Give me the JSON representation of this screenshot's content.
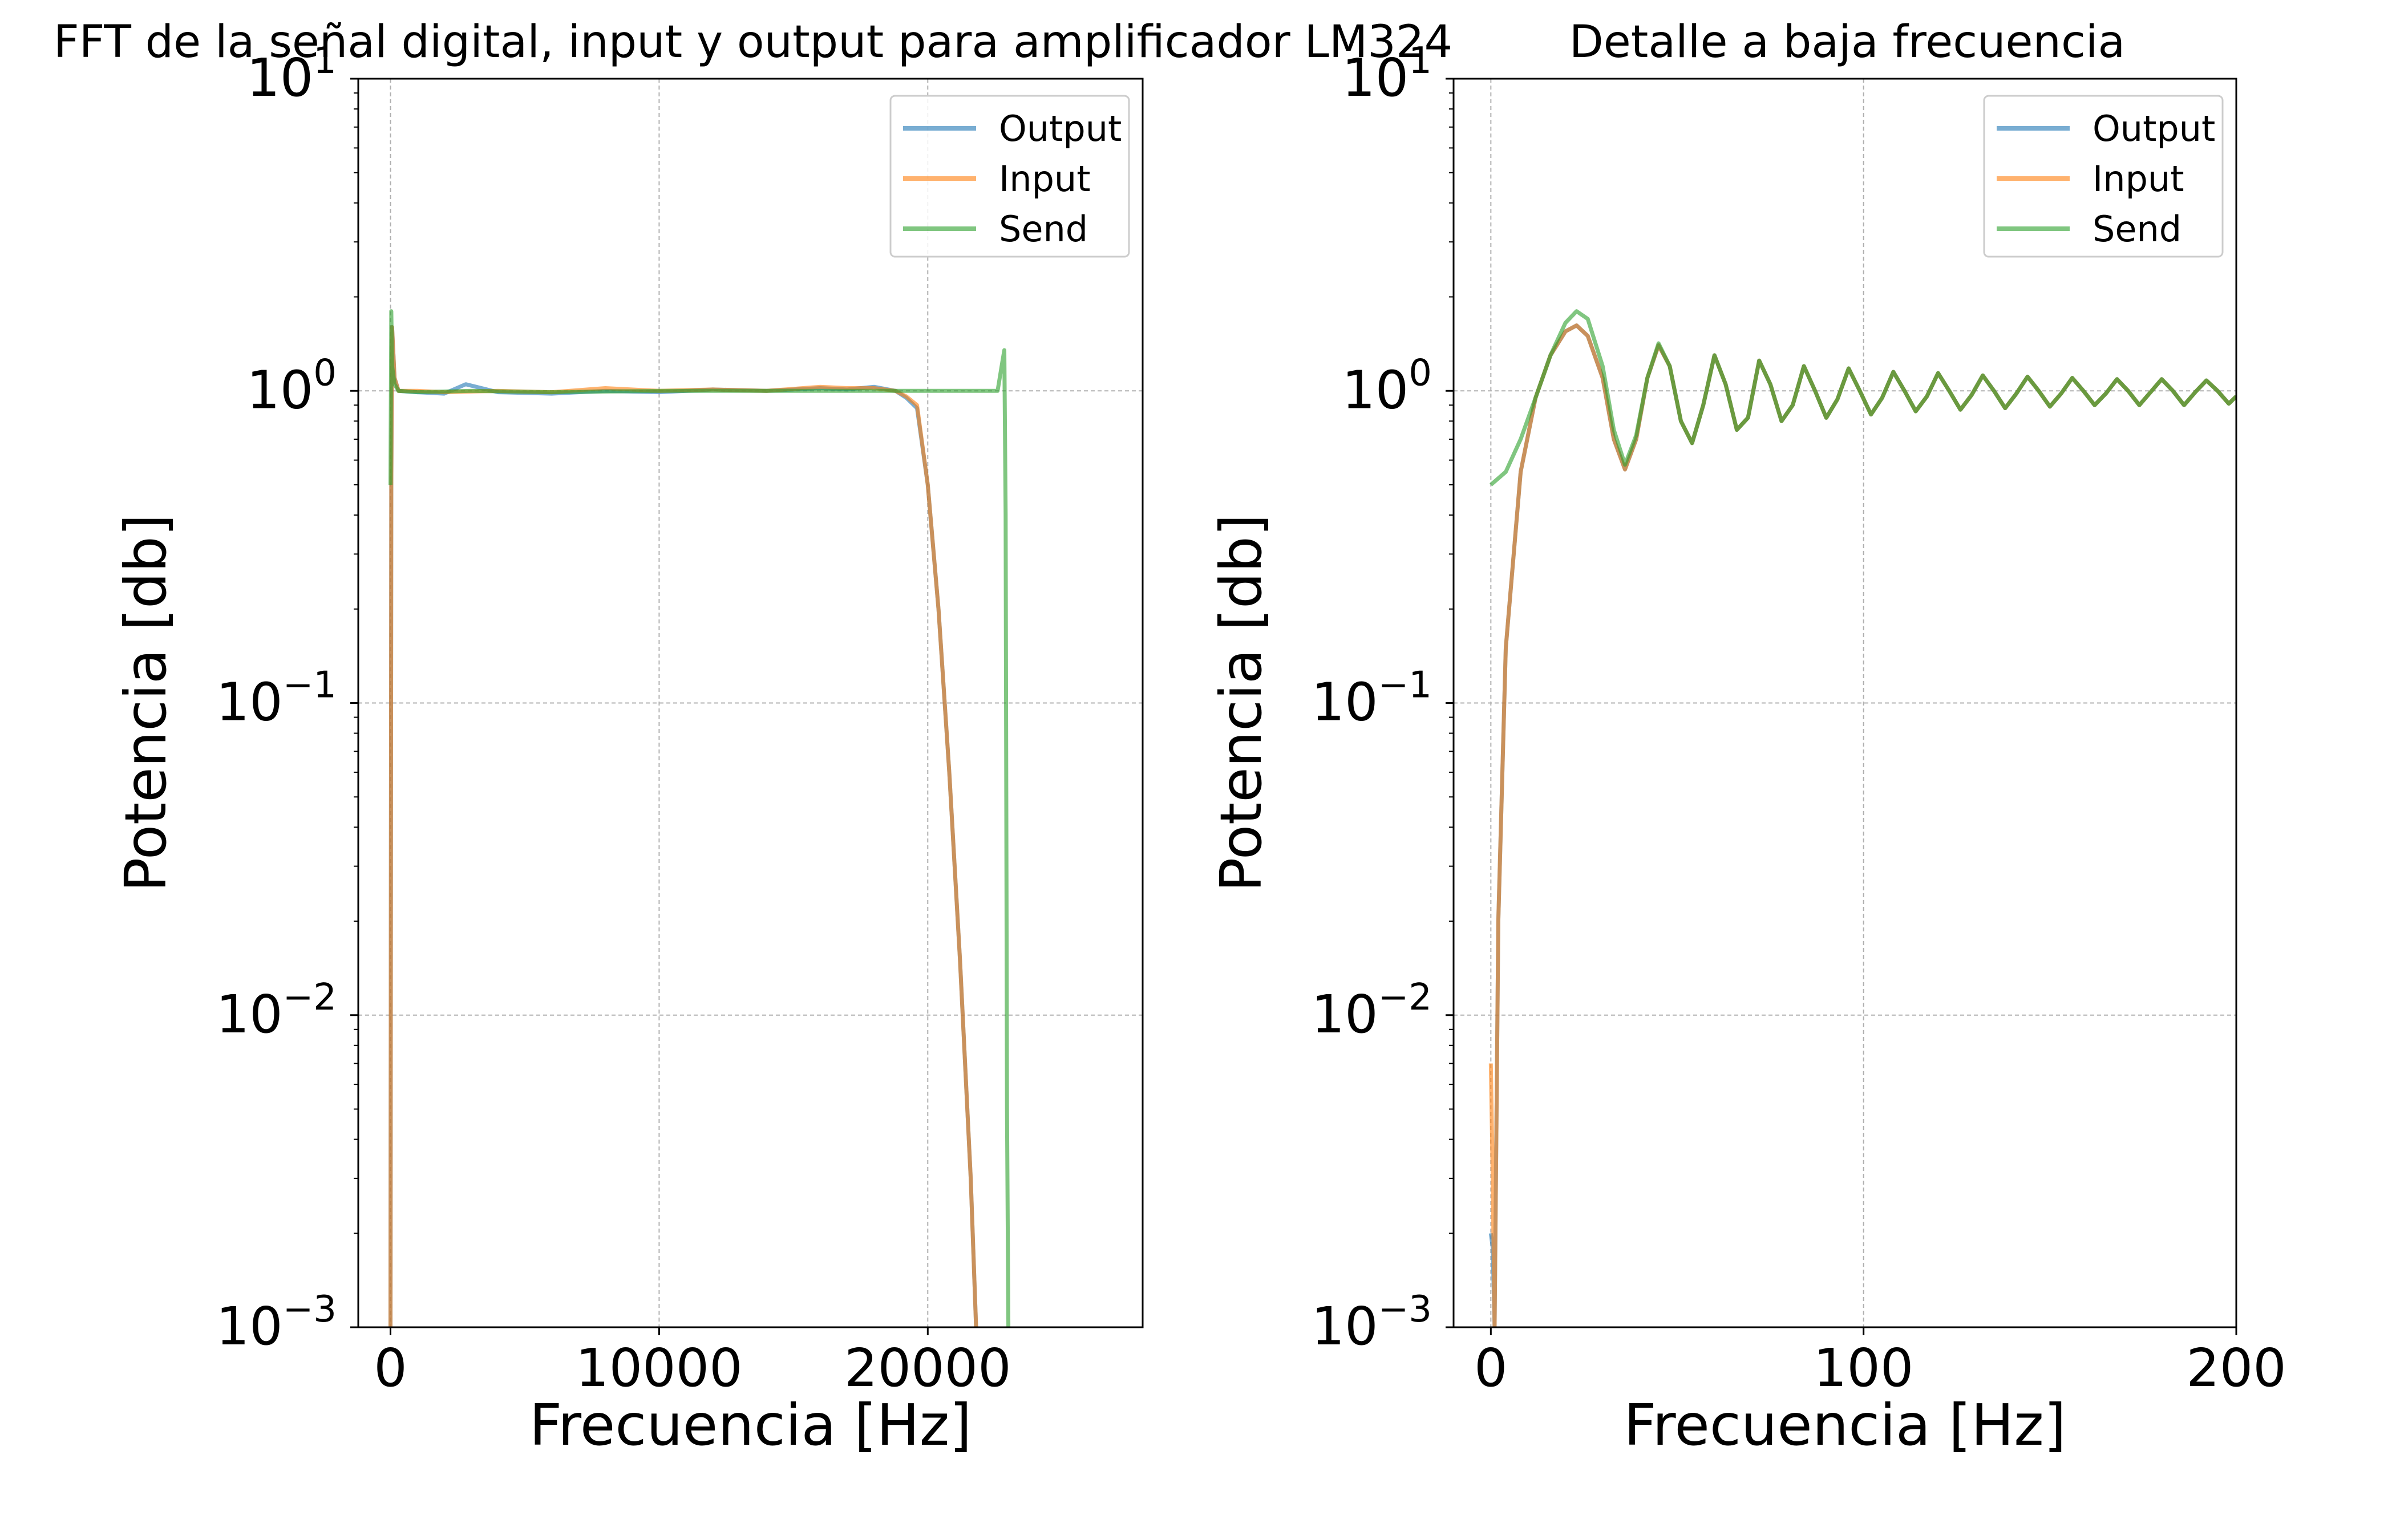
{
  "figure": {
    "left_title": "FFT de la señal digital, input y output para amplificador LM324",
    "right_title": "Detalle a baja frecuencia"
  },
  "colors": {
    "Output": "#1f77b4",
    "Input": "#ff7f0e",
    "Send": "#2ca02c"
  },
  "chart_data": [
    {
      "type": "line",
      "title": "FFT de la señal digital, input y output para amplificador LM324",
      "xlabel": "Frecuencia [Hz]",
      "ylabel": "Potencia [db]",
      "xlim": [
        -1200,
        28000
      ],
      "ylim": [
        0.001,
        10
      ],
      "yscale": "log",
      "xticks": [
        0,
        10000,
        20000
      ],
      "xtick_labels": [
        "0",
        "10000",
        "20000"
      ],
      "yticks": [
        0.001,
        0.01,
        0.1,
        1,
        10
      ],
      "ytick_labels": [
        [
          "10",
          "−3"
        ],
        [
          "10",
          "−2"
        ],
        [
          "10",
          "−1"
        ],
        [
          "10",
          "0"
        ],
        [
          "10",
          "1"
        ]
      ],
      "grid": true,
      "legend": {
        "position": "upper right",
        "entries": [
          "Output",
          "Input",
          "Send"
        ]
      },
      "series": [
        {
          "name": "Output",
          "x": [
            0,
            30,
            60,
            150,
            300,
            1000,
            2000,
            2800,
            4000,
            6000,
            8000,
            10000,
            12000,
            14000,
            16000,
            17000,
            18000,
            18800,
            19200,
            19600,
            20000,
            20400,
            20800,
            21200,
            21600,
            21800
          ],
          "y": [
            0.001,
            0.5,
            1.6,
            1.1,
            1.0,
            0.99,
            0.98,
            1.05,
            0.99,
            0.98,
            1.0,
            0.99,
            1.01,
            1.0,
            1.02,
            1.01,
            1.03,
            1.0,
            0.95,
            0.88,
            0.5,
            0.2,
            0.06,
            0.015,
            0.003,
            0.001
          ]
        },
        {
          "name": "Input",
          "x": [
            0,
            30,
            60,
            150,
            300,
            1000,
            2000,
            4000,
            6000,
            8000,
            10000,
            12000,
            14000,
            16000,
            17000,
            18000,
            18800,
            19200,
            19600,
            20000,
            20400,
            20800,
            21200,
            21600,
            21800
          ],
          "y": [
            0.001,
            0.5,
            1.6,
            1.1,
            1.0,
            1.0,
            0.99,
            1.0,
            0.99,
            1.02,
            1.0,
            1.01,
            1.0,
            1.03,
            1.02,
            1.02,
            1.0,
            0.96,
            0.9,
            0.5,
            0.2,
            0.06,
            0.015,
            0.003,
            0.001
          ]
        },
        {
          "name": "Send",
          "x": [
            0,
            30,
            60,
            150,
            300,
            1000,
            3000,
            6000,
            10000,
            14000,
            18000,
            19000,
            20000,
            21000,
            22000,
            22600,
            22750,
            22850,
            22900,
            22950,
            23000
          ],
          "y": [
            0.5,
            1.8,
            1.2,
            1.05,
            1.0,
            0.99,
            1.0,
            0.99,
            1.0,
            1.0,
            1.0,
            1.0,
            1.0,
            1.0,
            1.0,
            1.0,
            1.2,
            1.35,
            0.4,
            0.005,
            0.001
          ]
        }
      ]
    },
    {
      "type": "line",
      "title": "Detalle a baja frecuencia",
      "xlabel": "Frecuencia [Hz]",
      "ylabel": "Potencia [db]",
      "xlim": [
        -10,
        200
      ],
      "ylim": [
        0.001,
        10
      ],
      "yscale": "log",
      "xticks": [
        0,
        100,
        200
      ],
      "xtick_labels": [
        "0",
        "100",
        "200"
      ],
      "yticks": [
        0.001,
        0.01,
        0.1,
        1,
        10
      ],
      "ytick_labels": [
        [
          "10",
          "−3"
        ],
        [
          "10",
          "−2"
        ],
        [
          "10",
          "−1"
        ],
        [
          "10",
          "0"
        ],
        [
          "10",
          "1"
        ]
      ],
      "grid": true,
      "legend": {
        "position": "upper right",
        "entries": [
          "Output",
          "Input",
          "Send"
        ]
      },
      "series": [
        {
          "name": "Output",
          "x": [
            0,
            0.5,
            1,
            2,
            4,
            8,
            12,
            16,
            20,
            23,
            26,
            30,
            33,
            36,
            39,
            42,
            45,
            48,
            51,
            54,
            57,
            60,
            63,
            66,
            69,
            72,
            75,
            78,
            81,
            84,
            87,
            90,
            93,
            96,
            99,
            102,
            105,
            108,
            111,
            114,
            117,
            120,
            123,
            126,
            129,
            132,
            135,
            138,
            141,
            144,
            147,
            150,
            153,
            156,
            159,
            162,
            165,
            168,
            171,
            174,
            177,
            180,
            183,
            186,
            189,
            192,
            195,
            198,
            200
          ],
          "y": [
            0.002,
            0.0018,
            0.001,
            0.02,
            0.15,
            0.55,
            0.95,
            1.3,
            1.55,
            1.62,
            1.5,
            1.1,
            0.7,
            0.56,
            0.7,
            1.1,
            1.4,
            1.2,
            0.8,
            0.68,
            0.9,
            1.3,
            1.05,
            0.75,
            0.82,
            1.25,
            1.05,
            0.8,
            0.9,
            1.2,
            1.0,
            0.82,
            0.94,
            1.18,
            1.0,
            0.84,
            0.95,
            1.15,
            1.0,
            0.86,
            0.96,
            1.14,
            1.0,
            0.87,
            0.97,
            1.12,
            1.0,
            0.88,
            0.98,
            1.11,
            1.0,
            0.89,
            0.98,
            1.1,
            1.0,
            0.9,
            0.98,
            1.09,
            1.0,
            0.9,
            0.99,
            1.09,
            1.0,
            0.9,
            0.99,
            1.08,
            1.0,
            0.91,
            0.96
          ]
        },
        {
          "name": "Input",
          "x": [
            0,
            0.5,
            1,
            2,
            4,
            8,
            12,
            16,
            20,
            23,
            26,
            30,
            33,
            36,
            39,
            42,
            45,
            48,
            51,
            54,
            57,
            60,
            63,
            66,
            69,
            72,
            75,
            78,
            81,
            84,
            87,
            90,
            93,
            96,
            99,
            102,
            105,
            108,
            111,
            114,
            117,
            120,
            123,
            126,
            129,
            132,
            135,
            138,
            141,
            144,
            147,
            150,
            153,
            156,
            159,
            162,
            165,
            168,
            171,
            174,
            177,
            180,
            183,
            186,
            189,
            192,
            195,
            198,
            200
          ],
          "y": [
            0.007,
            0.003,
            0.001,
            0.02,
            0.15,
            0.55,
            0.95,
            1.3,
            1.55,
            1.62,
            1.5,
            1.1,
            0.7,
            0.56,
            0.7,
            1.1,
            1.4,
            1.2,
            0.8,
            0.68,
            0.9,
            1.3,
            1.05,
            0.75,
            0.82,
            1.25,
            1.05,
            0.8,
            0.9,
            1.2,
            1.0,
            0.82,
            0.94,
            1.18,
            1.0,
            0.84,
            0.95,
            1.15,
            1.0,
            0.86,
            0.96,
            1.14,
            1.0,
            0.87,
            0.97,
            1.12,
            1.0,
            0.88,
            0.98,
            1.11,
            1.0,
            0.89,
            0.98,
            1.1,
            1.0,
            0.9,
            0.98,
            1.09,
            1.0,
            0.9,
            0.99,
            1.09,
            1.0,
            0.9,
            0.99,
            1.08,
            1.0,
            0.91,
            0.96
          ]
        },
        {
          "name": "Send",
          "x": [
            0,
            4,
            8,
            12,
            16,
            20,
            23,
            26,
            30,
            33,
            36,
            39,
            42,
            45,
            48,
            51,
            54,
            57,
            60,
            63,
            66,
            69,
            72,
            75,
            78,
            81,
            84,
            87,
            90,
            93,
            96,
            99,
            102,
            105,
            108,
            111,
            114,
            117,
            120,
            123,
            126,
            129,
            132,
            135,
            138,
            141,
            144,
            147,
            150,
            153,
            156,
            159,
            162,
            165,
            168,
            171,
            174,
            177,
            180,
            183,
            186,
            189,
            192,
            195,
            198,
            200
          ],
          "y": [
            0.5,
            0.55,
            0.7,
            0.95,
            1.3,
            1.65,
            1.8,
            1.7,
            1.2,
            0.75,
            0.58,
            0.72,
            1.1,
            1.42,
            1.2,
            0.8,
            0.68,
            0.9,
            1.3,
            1.05,
            0.75,
            0.82,
            1.25,
            1.05,
            0.8,
            0.9,
            1.2,
            1.0,
            0.82,
            0.94,
            1.18,
            1.0,
            0.84,
            0.95,
            1.15,
            1.0,
            0.86,
            0.96,
            1.14,
            1.0,
            0.87,
            0.97,
            1.12,
            1.0,
            0.88,
            0.98,
            1.11,
            1.0,
            0.89,
            0.98,
            1.1,
            1.0,
            0.9,
            0.98,
            1.09,
            1.0,
            0.9,
            0.99,
            1.09,
            1.0,
            0.9,
            0.99,
            1.08,
            1.0,
            0.91,
            0.96
          ]
        }
      ]
    }
  ]
}
